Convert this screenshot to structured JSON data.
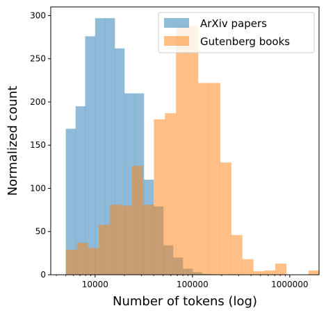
{
  "chart_data": {
    "type": "histogram",
    "xscale": "log",
    "xlabel": "Number of tokens (log)",
    "ylabel": "Normalized count",
    "xlim": [
      3500,
      2000000
    ],
    "ylim": [
      0,
      310
    ],
    "xticks": [
      10000,
      100000,
      1000000
    ],
    "xtick_labels": [
      "10000",
      "100000",
      "1000000"
    ],
    "yticks": [
      0,
      50,
      100,
      150,
      200,
      250,
      300
    ],
    "ytick_labels": [
      "0",
      "50",
      "100",
      "150",
      "200",
      "250",
      "300"
    ],
    "legend_position": "upper-right",
    "grid": false,
    "series": [
      {
        "name": "ArXiv papers",
        "color": "#1f77b4",
        "alpha": 0.5,
        "bins": [
          {
            "x0": 5000,
            "x1": 6300,
            "y": 169
          },
          {
            "x0": 6300,
            "x1": 7900,
            "y": 195
          },
          {
            "x0": 7900,
            "x1": 10000,
            "y": 276
          },
          {
            "x0": 10000,
            "x1": 12600,
            "y": 297
          },
          {
            "x0": 12600,
            "x1": 15900,
            "y": 297
          },
          {
            "x0": 15900,
            "x1": 20000,
            "y": 262
          },
          {
            "x0": 20000,
            "x1": 25200,
            "y": 210
          },
          {
            "x0": 25200,
            "x1": 31700,
            "y": 210
          },
          {
            "x0": 31700,
            "x1": 39900,
            "y": 110
          },
          {
            "x0": 39900,
            "x1": 50200,
            "y": 79
          },
          {
            "x0": 50200,
            "x1": 63200,
            "y": 34
          },
          {
            "x0": 63200,
            "x1": 79600,
            "y": 20
          },
          {
            "x0": 79600,
            "x1": 100200,
            "y": 7
          },
          {
            "x0": 100200,
            "x1": 126100,
            "y": 3
          },
          {
            "x0": 126100,
            "x1": 158700,
            "y": 1
          }
        ]
      },
      {
        "name": "Gutenberg books",
        "color": "#ff7f0e",
        "alpha": 0.5,
        "bins": [
          {
            "x0": 5000,
            "x1": 6500,
            "y": 29
          },
          {
            "x0": 6500,
            "x1": 8400,
            "y": 37
          },
          {
            "x0": 8400,
            "x1": 10900,
            "y": 31
          },
          {
            "x0": 10900,
            "x1": 14200,
            "y": 58
          },
          {
            "x0": 14200,
            "x1": 18400,
            "y": 81
          },
          {
            "x0": 18400,
            "x1": 23900,
            "y": 80
          },
          {
            "x0": 23900,
            "x1": 31000,
            "y": 126
          },
          {
            "x0": 31000,
            "x1": 40200,
            "y": 81
          },
          {
            "x0": 40200,
            "x1": 52200,
            "y": 180
          },
          {
            "x0": 52200,
            "x1": 67800,
            "y": 187
          },
          {
            "x0": 67800,
            "x1": 88000,
            "y": 288
          },
          {
            "x0": 88000,
            "x1": 114200,
            "y": 288
          },
          {
            "x0": 114200,
            "x1": 148300,
            "y": 222
          },
          {
            "x0": 148300,
            "x1": 192500,
            "y": 222
          },
          {
            "x0": 192500,
            "x1": 250000,
            "y": 130
          },
          {
            "x0": 250000,
            "x1": 324500,
            "y": 46
          },
          {
            "x0": 324500,
            "x1": 421300,
            "y": 18
          },
          {
            "x0": 421300,
            "x1": 547000,
            "y": 4
          },
          {
            "x0": 547000,
            "x1": 710200,
            "y": 5
          },
          {
            "x0": 710200,
            "x1": 922000,
            "y": 13
          },
          {
            "x0": 922000,
            "x1": 1197000,
            "y": 0
          },
          {
            "x0": 1197000,
            "x1": 1554000,
            "y": 0
          },
          {
            "x0": 1554000,
            "x1": 2000000,
            "y": 5
          }
        ]
      }
    ]
  }
}
